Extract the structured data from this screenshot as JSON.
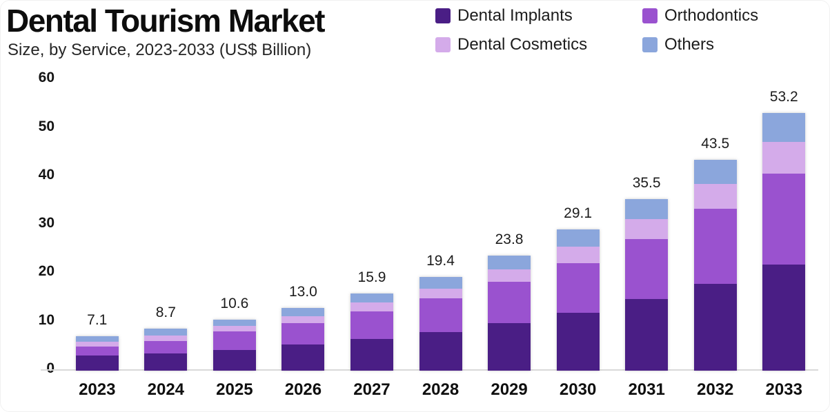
{
  "header": {
    "title": "Dental Tourism Market",
    "subtitle": "Size, by Service, 2023-2033 (US$ Billion)"
  },
  "colors": {
    "dental_implants": "#4a1e85",
    "orthodontics": "#9a52cf",
    "dental_cosmetics": "#d4abea",
    "others": "#8ba6dc",
    "axis_line": "#d9d9d9",
    "text": "#111111"
  },
  "legend": [
    {
      "label": "Dental Implants",
      "color": "#4a1e85"
    },
    {
      "label": "Orthodontics",
      "color": "#9a52cf"
    },
    {
      "label": "Dental Cosmetics",
      "color": "#d4abea"
    },
    {
      "label": "Others",
      "color": "#8ba6dc"
    }
  ],
  "chart_data": {
    "type": "bar",
    "stacked": true,
    "title": "Dental Tourism Market",
    "subtitle": "Size, by Service, 2023-2033 (US$ Billion)",
    "xlabel": "",
    "ylabel": "US$ Billion",
    "categories": [
      "2023",
      "2024",
      "2025",
      "2026",
      "2027",
      "2028",
      "2029",
      "2030",
      "2031",
      "2032",
      "2033"
    ],
    "series": [
      {
        "name": "Dental Implants",
        "color": "#4a1e85",
        "values": [
          3.1,
          3.6,
          4.3,
          5.4,
          6.6,
          8.0,
          9.8,
          11.9,
          14.8,
          18.0,
          21.9
        ]
      },
      {
        "name": "Orthodontics",
        "color": "#9a52cf",
        "values": [
          1.9,
          2.5,
          3.8,
          4.4,
          5.6,
          6.9,
          8.5,
          10.3,
          12.4,
          15.4,
          18.8
        ]
      },
      {
        "name": "Dental Cosmetics",
        "color": "#d4abea",
        "values": [
          0.95,
          1.2,
          1.2,
          1.5,
          1.9,
          2.0,
          2.6,
          3.4,
          4.1,
          5.2,
          6.5
        ]
      },
      {
        "name": "Others",
        "color": "#8ba6dc",
        "values": [
          1.15,
          1.4,
          1.3,
          1.7,
          1.8,
          2.5,
          2.9,
          3.5,
          4.2,
          4.9,
          6.0
        ]
      }
    ],
    "totals": [
      7.1,
      8.7,
      10.6,
      13.0,
      15.9,
      19.4,
      23.8,
      29.1,
      35.5,
      43.5,
      53.2
    ],
    "yticks": [
      0,
      10,
      20,
      30,
      40,
      50,
      60
    ],
    "ylim": [
      0,
      60
    ],
    "grid": false,
    "legend_position": "top-right",
    "total_label_decimals": 1
  }
}
